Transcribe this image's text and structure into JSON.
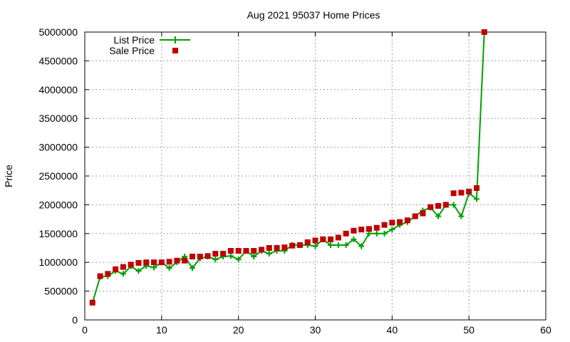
{
  "chart_data": {
    "type": "line",
    "title": "Aug 2021 95037 Home Prices",
    "xlabel": "",
    "ylabel": "Price",
    "xlim": [
      0,
      60
    ],
    "ylim": [
      0,
      5000000
    ],
    "xticks": [
      0,
      10,
      20,
      30,
      40,
      50,
      60
    ],
    "yticks": [
      0,
      500000,
      1000000,
      1500000,
      2000000,
      2500000,
      3000000,
      3500000,
      4000000,
      4500000,
      5000000
    ],
    "grid": true,
    "legend_position": "top-left",
    "colors": {
      "list": "#00a000",
      "sale": "#c00000"
    },
    "series": [
      {
        "name": "List Price",
        "style": "line-plus",
        "x": [
          1,
          2,
          3,
          4,
          5,
          6,
          7,
          8,
          9,
          10,
          11,
          12,
          13,
          14,
          15,
          16,
          17,
          18,
          19,
          20,
          21,
          22,
          23,
          24,
          25,
          26,
          27,
          28,
          29,
          30,
          31,
          32,
          33,
          34,
          35,
          36,
          37,
          38,
          39,
          40,
          41,
          42,
          43,
          44,
          45,
          46,
          47,
          48,
          49,
          50,
          51,
          52
        ],
        "values": [
          300000,
          750000,
          760000,
          850000,
          800000,
          930000,
          850000,
          940000,
          910000,
          1000000,
          900000,
          1000000,
          1100000,
          900000,
          1070000,
          1100000,
          1050000,
          1100000,
          1110000,
          1050000,
          1200000,
          1100000,
          1200000,
          1150000,
          1200000,
          1200000,
          1300000,
          1300000,
          1300000,
          1280000,
          1400000,
          1300000,
          1300000,
          1300000,
          1400000,
          1280000,
          1500000,
          1500000,
          1500000,
          1570000,
          1650000,
          1700000,
          1800000,
          1900000,
          1950000,
          1800000,
          2000000,
          2000000,
          1800000,
          2200000,
          2100000,
          5000000
        ]
      },
      {
        "name": "Sale Price",
        "style": "squares",
        "x": [
          1,
          2,
          3,
          4,
          5,
          6,
          7,
          8,
          9,
          10,
          11,
          12,
          13,
          14,
          15,
          16,
          17,
          18,
          19,
          20,
          21,
          22,
          23,
          24,
          25,
          26,
          27,
          28,
          29,
          30,
          31,
          32,
          33,
          34,
          35,
          36,
          37,
          38,
          39,
          40,
          41,
          42,
          43,
          44,
          45,
          46,
          47,
          48,
          49,
          50,
          51,
          52
        ],
        "values": [
          300000,
          760000,
          800000,
          880000,
          920000,
          960000,
          990000,
          1000000,
          1000000,
          1000000,
          1010000,
          1030000,
          1030000,
          1100000,
          1100000,
          1110000,
          1150000,
          1150000,
          1200000,
          1200000,
          1200000,
          1200000,
          1220000,
          1250000,
          1250000,
          1260000,
          1290000,
          1300000,
          1350000,
          1380000,
          1400000,
          1400000,
          1430000,
          1500000,
          1550000,
          1570000,
          1580000,
          1600000,
          1650000,
          1690000,
          1700000,
          1730000,
          1800000,
          1850000,
          1960000,
          1980000,
          2000000,
          2200000,
          2210000,
          2230000,
          2290000,
          5000000
        ]
      }
    ]
  }
}
